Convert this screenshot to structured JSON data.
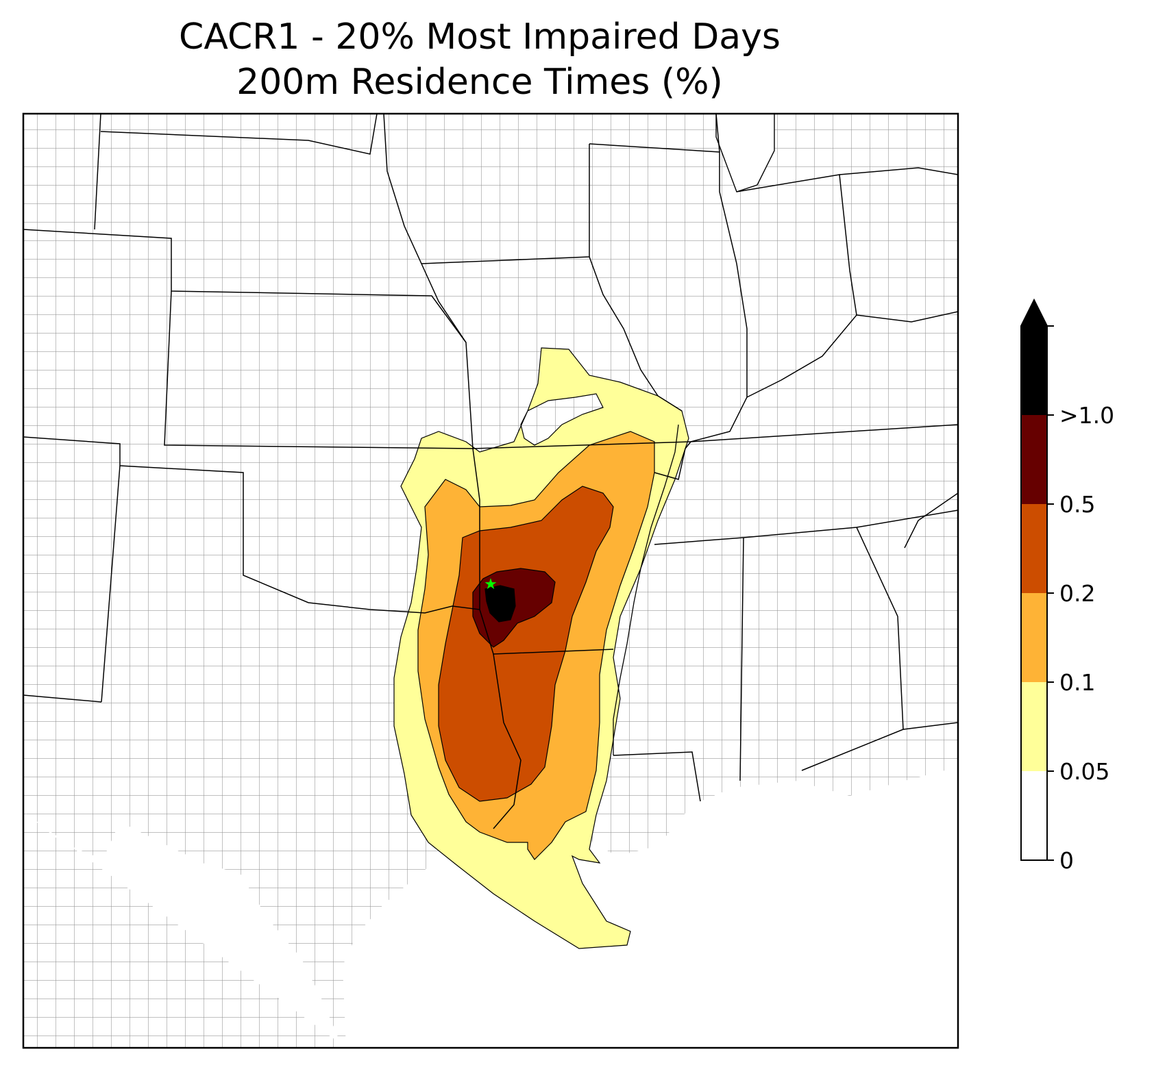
{
  "title": {
    "line1": "CACR1 - 20% Most Impaired Days",
    "line2": "200m Residence Times (%)"
  },
  "site_marker": {
    "icon": "star-icon",
    "color": "#00ff00"
  },
  "colorbar": {
    "levels": [
      {
        "label": "0",
        "color": "#ffffff"
      },
      {
        "label": "0.05",
        "color": "#ffff99"
      },
      {
        "label": "0.1",
        "color": "#feb336"
      },
      {
        "label": "0.2",
        "color": "#cc4d00"
      },
      {
        "label": "0.5",
        "color": "#660000"
      },
      {
        "label": ">1.0",
        "color": "#000000"
      }
    ],
    "extend": "max",
    "extend_color": "#000000"
  },
  "colors": {
    "state_border": "#000000",
    "county_border": "#999999"
  }
}
